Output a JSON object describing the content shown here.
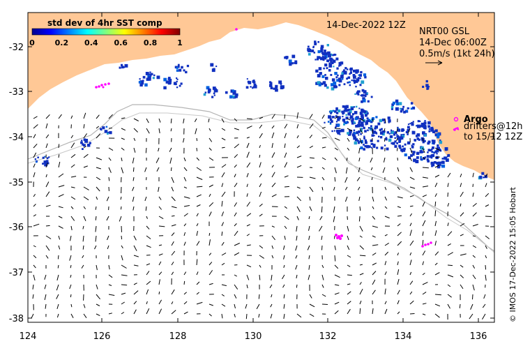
{
  "map": {
    "date_title": "14-Dec-2022 12Z",
    "product_lines": [
      "NRT00 GSL",
      "14-Dec 06:00Z",
      "0.5m/s (1kt 24h)"
    ],
    "colorbar": {
      "title": "std dev of 4hr SST comp",
      "ticks": [
        "0",
        "0.2",
        "0.4",
        "0.6",
        "0.8",
        "1"
      ],
      "colors": [
        "#00008f",
        "#0000ff",
        "#0080ff",
        "#00ffff",
        "#80ff80",
        "#ffff00",
        "#ff8000",
        "#ff0000",
        "#800000"
      ]
    },
    "legend": {
      "argo_label": "Argo",
      "drifters_line1": "drifters@12h",
      "drifters_line2": "to 15/12 12Z",
      "marker_color": "#ff00ff"
    },
    "y_axis_ticks": [
      "-32",
      "-33",
      "-34",
      "-35",
      "-36",
      "-37",
      "-38"
    ],
    "x_axis_ticks": [
      "124",
      "126",
      "128",
      "130",
      "132",
      "134",
      "136"
    ],
    "credit": "© IMOS 17-Dec-2022 15:05 Hobart",
    "colors": {
      "land": "#ffc896",
      "sst_patch": "#1030c0",
      "shelf_line": "#b4b4b4",
      "argo": "#ff00ff"
    }
  }
}
